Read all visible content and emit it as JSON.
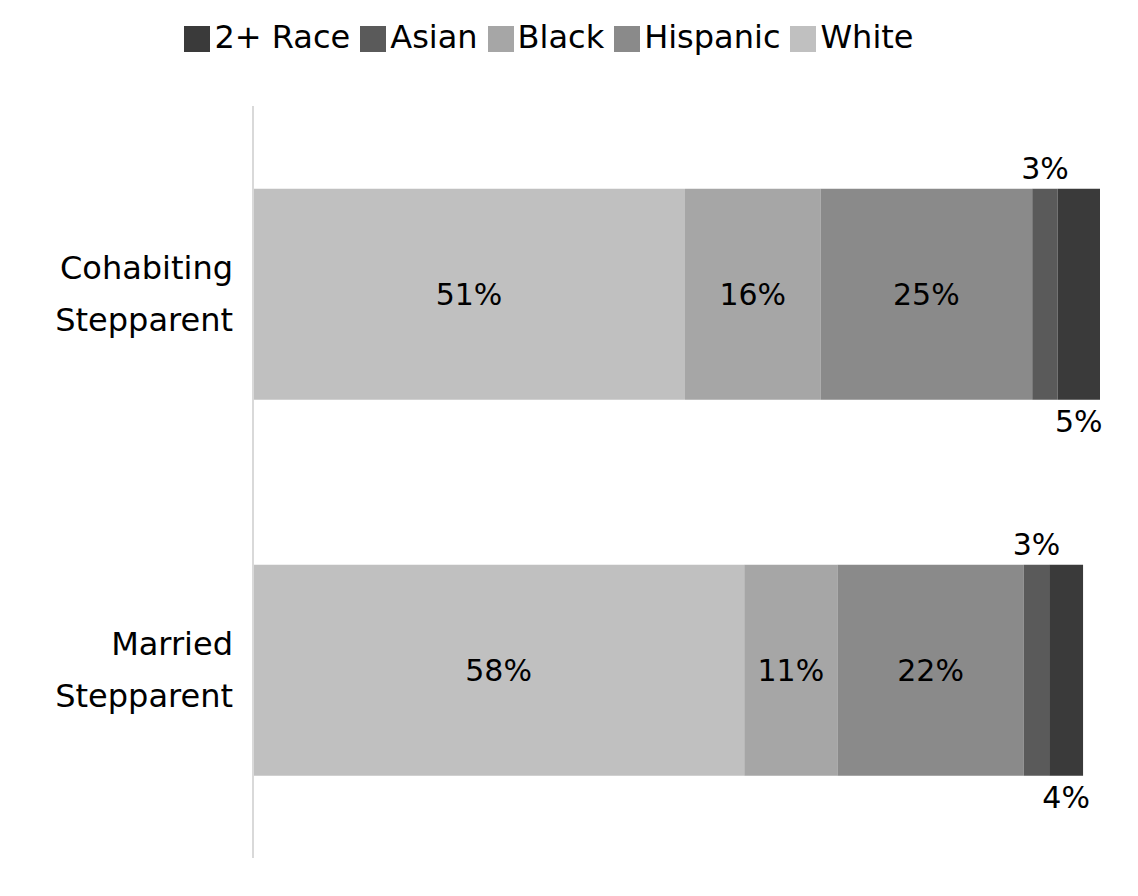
{
  "chart_data": {
    "type": "bar",
    "orientation": "horizontal",
    "stacked": true,
    "data_labels": true,
    "tick_labels": "y",
    "legend": "top",
    "categories": [
      "Cohabiting Stepparent",
      "Married Stepparent"
    ],
    "series": [
      {
        "name": "White",
        "color": "#c0c0c0",
        "values": [
          51,
          58
        ],
        "value_labels": [
          "51%",
          "58%"
        ]
      },
      {
        "name": "Black",
        "color": "#a6a6a6",
        "values": [
          16,
          11
        ],
        "value_labels": [
          "16%",
          "11%"
        ]
      },
      {
        "name": "Hispanic",
        "color": "#8a8a8a",
        "values": [
          25,
          22
        ],
        "value_labels": [
          "25%",
          "22%"
        ]
      },
      {
        "name": "Asian",
        "color": "#5a5a5a",
        "values": [
          3,
          3
        ],
        "value_labels": [
          "3%",
          "3%"
        ]
      },
      {
        "name": "2+ Race",
        "color": "#3a3a3a",
        "values": [
          5,
          4
        ],
        "value_labels": [
          "5%",
          "4%"
        ]
      }
    ]
  }
}
